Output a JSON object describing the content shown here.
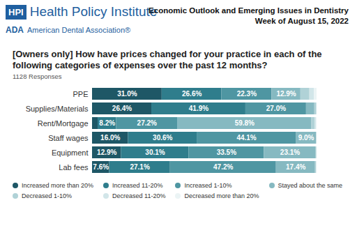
{
  "header": {
    "logo_mark": "HPI",
    "logo_name": "Health Policy Institute",
    "org_mark": "ADA",
    "org_name": "American Dental Association®",
    "report": "Economic Outlook and Emerging Issues in Dentistry",
    "week": "Week of August 15, 2022"
  },
  "chart_data": {
    "type": "bar",
    "orientation": "horizontal",
    "stacked": true,
    "data_labels": true,
    "tick_labels": "y",
    "legend": "bottom",
    "title": "[Owners only] How have prices changed for your practice in each of the following categories of expenses over the past 12 months?",
    "subtitle": "1128 Responses",
    "xlim": [
      0,
      100
    ],
    "categories": [
      "PPE",
      "Supplies/Materials",
      "Rent/Mortgage",
      "Staff wages",
      "Equipment",
      "Lab fees"
    ],
    "series": [
      {
        "name": "Increased more than 20%",
        "color": "#1e5766",
        "values": [
          31.0,
          26.4,
          2.5,
          16.0,
          12.9,
          7.6
        ],
        "value_labels": [
          "31.0%",
          "26.4%",
          null,
          "16.0%",
          "12.9%",
          "7.6%"
        ]
      },
      {
        "name": "Increased 11-20%",
        "color": "#2f7d8c",
        "values": [
          26.6,
          41.9,
          8.2,
          30.6,
          30.1,
          27.1
        ],
        "value_labels": [
          "26.6%",
          "41.9%",
          "8.2%",
          "30.6%",
          "30.1%",
          "27.1%"
        ]
      },
      {
        "name": "Increased 1-10%",
        "color": "#4f96a2",
        "values": [
          22.3,
          27.0,
          27.2,
          44.1,
          33.5,
          47.2
        ],
        "value_labels": [
          "22.3%",
          "27.0%",
          "27.2%",
          "44.1%",
          "33.5%",
          "47.2%"
        ]
      },
      {
        "name": "Stayed about the same",
        "color": "#86b9c1",
        "values": [
          12.9,
          3.7,
          59.8,
          9.0,
          23.1,
          17.4
        ],
        "value_labels": [
          "12.9%",
          null,
          "59.8%",
          "9.0%",
          "23.1%",
          "17.4%"
        ]
      },
      {
        "name": "Decreased 1-10%",
        "color": "#b0d2d7",
        "values": [
          4.0,
          0.9,
          1.5,
          0.2,
          0.3,
          0.5
        ],
        "value_labels": [
          null,
          null,
          null,
          null,
          null,
          null
        ]
      },
      {
        "name": "Decreased 11-20%",
        "color": "#d2e6e9",
        "values": [
          2.0,
          0.1,
          0.5,
          0.1,
          0.1,
          0.1
        ],
        "value_labels": [
          null,
          null,
          null,
          null,
          null,
          null
        ]
      },
      {
        "name": "Decreased more than 20%",
        "color": "#ebf4f5",
        "values": [
          1.2,
          0.0,
          0.3,
          0.0,
          0.0,
          0.1
        ],
        "value_labels": [
          null,
          null,
          null,
          null,
          null,
          null
        ]
      }
    ]
  }
}
